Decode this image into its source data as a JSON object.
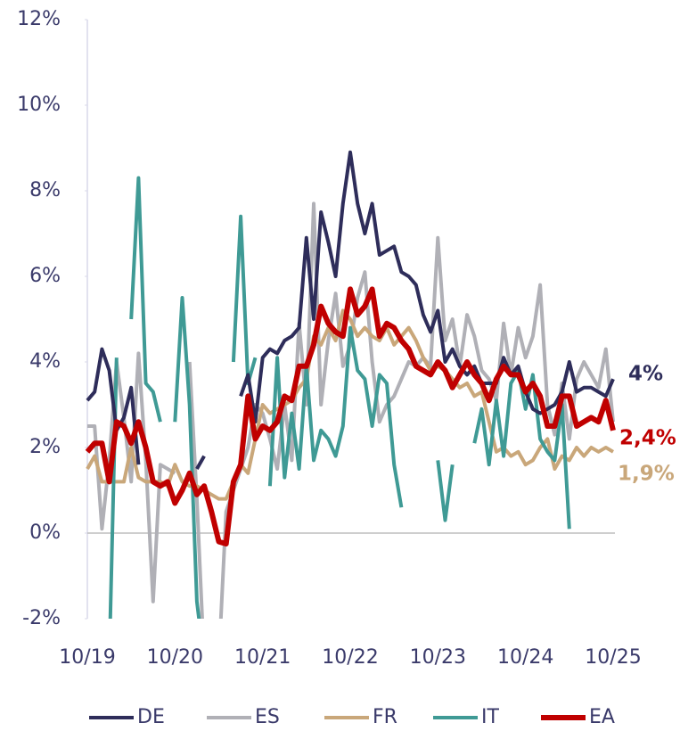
{
  "chart_data": {
    "type": "line",
    "categories": [
      "10/19",
      null,
      null,
      null,
      null,
      null,
      null,
      null,
      null,
      null,
      null,
      null,
      "10/20",
      null,
      null,
      null,
      null,
      null,
      null,
      null,
      null,
      null,
      null,
      null,
      "10/21",
      null,
      null,
      null,
      null,
      null,
      null,
      null,
      null,
      null,
      null,
      null,
      "10/22",
      null,
      null,
      null,
      null,
      null,
      null,
      null,
      null,
      null,
      null,
      null,
      "10/23",
      null,
      null,
      null,
      null,
      null,
      null,
      null,
      null,
      null,
      null,
      null,
      "10/24",
      null,
      null,
      null,
      null,
      null,
      null,
      null,
      null,
      null,
      null,
      null,
      "10/25"
    ],
    "series": [
      {
        "name": "DE",
        "color": "#2e2d5a",
        "width": 4,
        "end_label": "4%",
        "values": [
          3.1,
          3.3,
          4.3,
          3.8,
          2.4,
          2.7,
          3.4,
          1.6,
          null,
          null,
          null,
          null,
          null,
          null,
          null,
          1.5,
          1.8,
          null,
          null,
          null,
          null,
          3.2,
          3.7,
          2.6,
          4.1,
          4.3,
          4.2,
          4.5,
          4.6,
          4.8,
          6.9,
          5.0,
          7.5,
          6.8,
          6.0,
          7.7,
          8.9,
          7.7,
          7.0,
          7.7,
          6.5,
          6.6,
          6.7,
          6.1,
          6.0,
          5.8,
          5.1,
          4.7,
          5.2,
          4.0,
          4.3,
          3.9,
          3.7,
          3.9,
          3.5,
          3.5,
          3.5,
          4.1,
          3.7,
          3.9,
          3.3,
          2.9,
          2.8,
          2.9,
          3.0,
          3.3,
          4.0,
          3.3,
          3.4,
          3.4,
          3.3,
          3.2,
          3.6
        ]
      },
      {
        "name": "ES",
        "color": "#b0b0b6",
        "width": 4,
        "values": [
          2.5,
          2.5,
          0.1,
          1.7,
          4.0,
          2.7,
          1.2,
          4.2,
          1.7,
          -1.6,
          1.6,
          1.5,
          1.4,
          null,
          4.0,
          0.8,
          -3,
          -3,
          -3,
          0.5,
          1.0,
          1.5,
          2.0,
          3.0,
          2.8,
          2.2,
          1.5,
          3.0,
          1.7,
          4.9,
          3.0,
          7.7,
          3.0,
          4.5,
          5.6,
          3.9,
          4.4,
          5.5,
          6.1,
          4.0,
          2.6,
          3.0,
          3.2,
          3.6,
          4.0,
          3.9,
          4.1,
          3.9,
          6.9,
          4.5,
          5.0,
          3.9,
          5.1,
          4.6,
          3.8,
          3.6,
          3.1,
          4.9,
          3.7,
          4.8,
          4.1,
          4.6,
          5.8,
          3.0,
          2.3,
          3.5,
          2.2,
          3.6,
          4.0,
          3.7,
          3.4,
          4.3,
          2.6
        ]
      },
      {
        "name": "FR",
        "color": "#c9a77a",
        "width": 4,
        "end_label": "1,9%",
        "values": [
          1.5,
          1.8,
          1.2,
          1.2,
          1.2,
          1.2,
          2.0,
          1.3,
          1.2,
          1.2,
          1.2,
          1.1,
          1.6,
          1.2,
          1.1,
          1.1,
          1.0,
          0.9,
          0.8,
          0.8,
          1.2,
          1.6,
          1.4,
          2.2,
          3.0,
          2.8,
          2.9,
          3.0,
          3.1,
          3.4,
          3.6,
          4.6,
          4.4,
          4.8,
          4.5,
          5.2,
          5.0,
          4.6,
          4.8,
          4.6,
          4.5,
          4.8,
          4.4,
          4.6,
          4.8,
          4.5,
          4.1,
          3.8,
          3.9,
          3.8,
          3.6,
          3.4,
          3.5,
          3.2,
          3.3,
          2.6,
          1.9,
          2.0,
          1.8,
          1.9,
          1.6,
          1.7,
          2.0,
          2.2,
          1.5,
          1.8,
          1.7,
          2.0,
          1.8,
          2.0,
          1.9,
          2.0,
          1.9
        ]
      },
      {
        "name": "IT",
        "color": "#3f9a95",
        "width": 4,
        "values": [
          null,
          null,
          null,
          -3,
          4.1,
          null,
          5.0,
          8.3,
          3.5,
          3.3,
          2.6,
          null,
          2.6,
          5.5,
          3.0,
          -1.6,
          -3,
          null,
          null,
          null,
          4.0,
          7.4,
          3.5,
          4.1,
          null,
          1.1,
          4.1,
          1.3,
          2.8,
          1.5,
          3.9,
          1.7,
          2.4,
          2.2,
          1.8,
          2.5,
          4.8,
          3.8,
          3.6,
          2.5,
          3.7,
          3.5,
          1.6,
          0.6,
          null,
          null,
          null,
          null,
          1.7,
          0.3,
          1.6,
          null,
          null,
          2.1,
          2.9,
          1.6,
          3.1,
          1.8,
          3.5,
          3.8,
          2.9,
          3.7,
          2.2,
          1.9,
          1.7,
          3.0,
          0.1,
          null,
          null,
          null,
          null,
          null,
          null
        ]
      },
      {
        "name": "EA",
        "color": "#c00000",
        "width": 6,
        "end_label": "2,4%",
        "values": [
          1.9,
          2.1,
          2.1,
          1.2,
          2.6,
          2.5,
          2.1,
          2.6,
          2.0,
          1.2,
          1.1,
          1.2,
          0.7,
          1.0,
          1.4,
          0.9,
          1.1,
          0.5,
          -0.2,
          -0.25,
          1.2,
          1.6,
          3.2,
          2.2,
          2.5,
          2.4,
          2.6,
          3.2,
          3.1,
          3.9,
          3.9,
          4.4,
          5.3,
          4.9,
          4.7,
          4.6,
          5.7,
          5.1,
          5.3,
          5.7,
          4.6,
          4.9,
          4.8,
          4.5,
          4.3,
          3.9,
          3.8,
          3.7,
          4.0,
          3.8,
          3.4,
          3.7,
          4.0,
          3.7,
          3.5,
          3.1,
          3.6,
          3.9,
          3.7,
          3.7,
          3.3,
          3.5,
          3.2,
          2.5,
          2.5,
          3.2,
          3.2,
          2.5,
          2.6,
          2.7,
          2.6,
          3.1,
          2.4
        ]
      }
    ],
    "ylim": [
      -2,
      12
    ],
    "yticks": [
      {
        "value": -2,
        "label": "-2%"
      },
      {
        "value": 0,
        "label": "0%"
      },
      {
        "value": 2,
        "label": "2%"
      },
      {
        "value": 4,
        "label": "4%"
      },
      {
        "value": 6,
        "label": "6%"
      },
      {
        "value": 8,
        "label": "8%"
      },
      {
        "value": 10,
        "label": "10%"
      },
      {
        "value": 12,
        "label": "12%"
      }
    ],
    "legend": "bottom"
  }
}
